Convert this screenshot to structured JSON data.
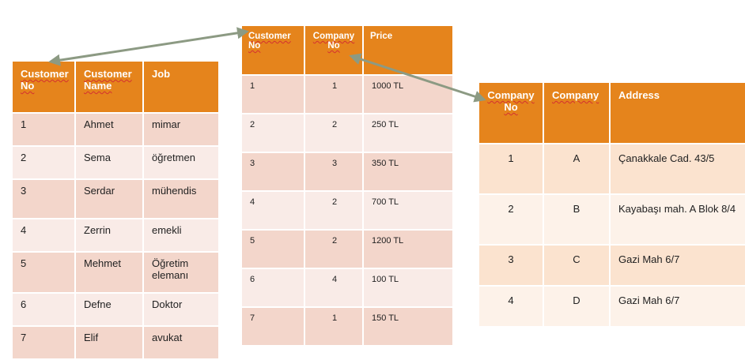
{
  "customer_table": {
    "headers": [
      "Customer No",
      "Customer Name",
      "Job"
    ],
    "rows": [
      [
        "1",
        "Ahmet",
        "mimar"
      ],
      [
        "2",
        "Sema",
        "öğretmen"
      ],
      [
        "3",
        "Serdar",
        "mühendis"
      ],
      [
        "4",
        "Zerrin",
        "emekli"
      ],
      [
        "5",
        "Mehmet",
        "Öğretim elemanı"
      ],
      [
        "6",
        "Defne",
        "Doktor"
      ],
      [
        "7",
        "Elif",
        "avukat"
      ]
    ]
  },
  "order_table": {
    "headers": [
      "Customer No",
      "Company No",
      "Price"
    ],
    "rows": [
      [
        "1",
        "1",
        "1000 TL"
      ],
      [
        "2",
        "2",
        "250 TL"
      ],
      [
        "3",
        "3",
        "350 TL"
      ],
      [
        "4",
        "2",
        "700 TL"
      ],
      [
        "5",
        "2",
        "1200 TL"
      ],
      [
        "6",
        "4",
        "100 TL"
      ],
      [
        "7",
        "1",
        "150 TL"
      ]
    ]
  },
  "company_table": {
    "headers": [
      "Company No",
      "Company",
      "Address"
    ],
    "rows": [
      [
        "1",
        "A",
        "Çanakkale Cad. 43/5"
      ],
      [
        "2",
        "B",
        "Kayabaşı mah. A Blok 8/4"
      ],
      [
        "3",
        "C",
        "Gazi Mah 6/7"
      ],
      [
        "4",
        "D",
        "Gazi Mah 6/7"
      ]
    ]
  },
  "colors": {
    "header": "#e5841c",
    "row_dark": "#f3d6cb",
    "row_light": "#f9ebe7",
    "company_row_dark": "#fbe3cf",
    "company_row_light": "#fdf2e9",
    "arrow": "#8c9a83"
  }
}
